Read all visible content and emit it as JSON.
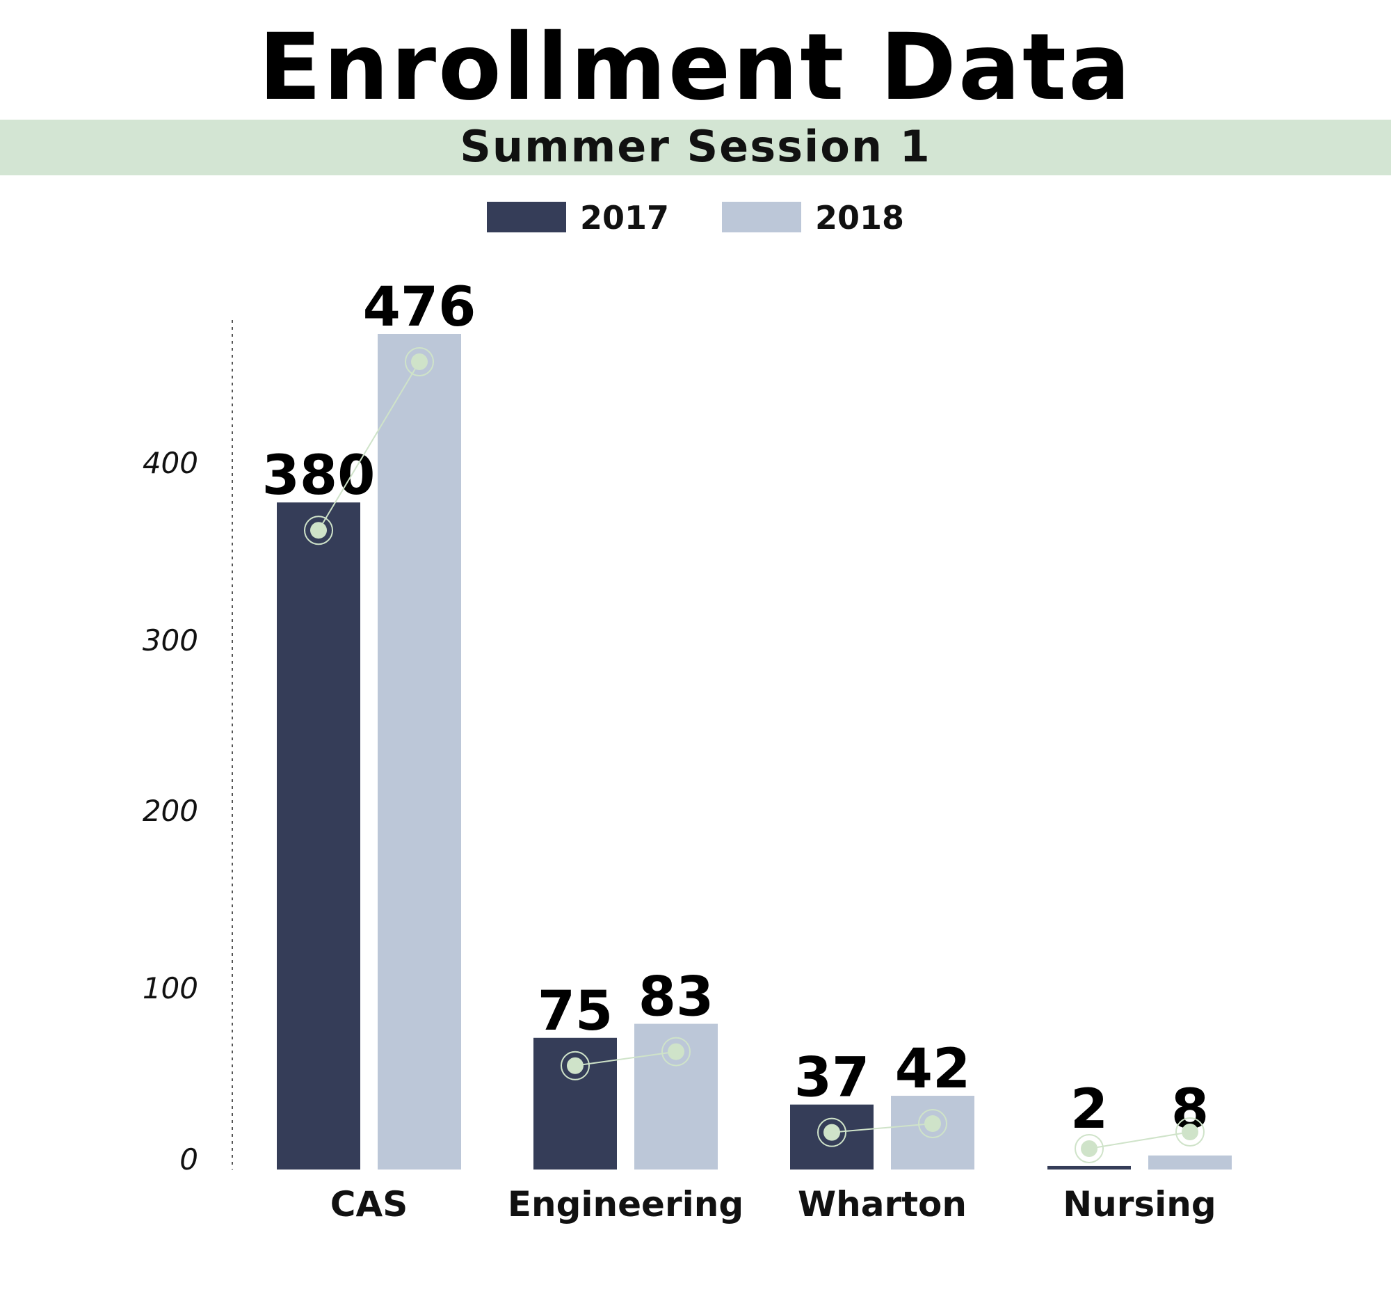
{
  "chart_data": {
    "type": "bar",
    "title": "Enrollment Data",
    "subtitle": "Summer Session 1",
    "categories": [
      "CAS",
      "Engineering",
      "Wharton",
      "Nursing"
    ],
    "series": [
      {
        "name": "2017",
        "values": [
          380,
          75,
          37,
          2
        ],
        "color": "#353d58"
      },
      {
        "name": "2018",
        "values": [
          476,
          83,
          42,
          8
        ],
        "color": "#bcc7d8"
      }
    ],
    "yticks": [
      "0",
      "100",
      "200",
      "300",
      "400"
    ],
    "ylim": [
      0,
      476
    ],
    "legend": "top-center",
    "grid": false,
    "marker_color": "#cfe3c9",
    "band_color": "#d3e5d3"
  }
}
